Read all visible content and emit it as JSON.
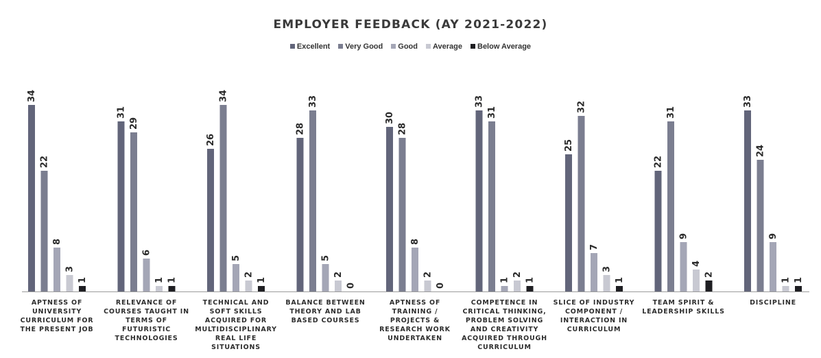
{
  "chart_data": {
    "type": "bar",
    "title": "EMPLOYER FEEDBACK (AY 2021-2022)",
    "legend_position": "top",
    "grid": false,
    "ylim": [
      0,
      36
    ],
    "categories": [
      [
        "APTNESS OF",
        "UNIVERSITY",
        "CURRICULUM FOR",
        "THE PRESENT JOB"
      ],
      [
        "RELEVANCE OF",
        "COURSES TAUGHT IN",
        "TERMS OF",
        "FUTURISTIC",
        "TECHNOLOGIES"
      ],
      [
        "TECHNICAL AND",
        "SOFT SKILLS",
        "ACQUIRED FOR",
        "MULTIDISCIPLINARY",
        "REAL LIFE",
        "SITUATIONS"
      ],
      [
        "BALANCE BETWEEN",
        "THEORY AND LAB",
        "BASED COURSES"
      ],
      [
        "APTNESS OF",
        "TRAINING /",
        "PROJECTS &",
        "RESEARCH WORK",
        "UNDERTAKEN"
      ],
      [
        "COMPETENCE IN",
        "CRITICAL THINKING,",
        "PROBLEM SOLVING",
        "AND CREATIVITY",
        "ACQUIRED THROUGH",
        "CURRICULUM"
      ],
      [
        "SLICE OF INDUSTRY",
        "COMPONENT /",
        "INTERACTION IN",
        "CURRICULUM"
      ],
      [
        "TEAM SPIRIT &",
        "LEADERSHIP SKILLS"
      ],
      [
        "DISCIPLINE"
      ]
    ],
    "series": [
      {
        "name": "Excellent",
        "color": "#62657a",
        "values": [
          34,
          31,
          26,
          28,
          30,
          33,
          25,
          22,
          33
        ]
      },
      {
        "name": "Very Good",
        "color": "#7b7e90",
        "values": [
          22,
          29,
          34,
          33,
          28,
          31,
          32,
          31,
          24
        ]
      },
      {
        "name": "Good",
        "color": "#a4a6b6",
        "values": [
          8,
          6,
          5,
          5,
          8,
          1,
          7,
          9,
          9
        ]
      },
      {
        "name": "Average",
        "color": "#c8c9d2",
        "values": [
          3,
          1,
          2,
          2,
          2,
          2,
          3,
          4,
          1
        ]
      },
      {
        "name": "Below Average",
        "color": "#1e1e22",
        "values": [
          1,
          1,
          1,
          0,
          0,
          1,
          1,
          2,
          1
        ]
      }
    ]
  }
}
